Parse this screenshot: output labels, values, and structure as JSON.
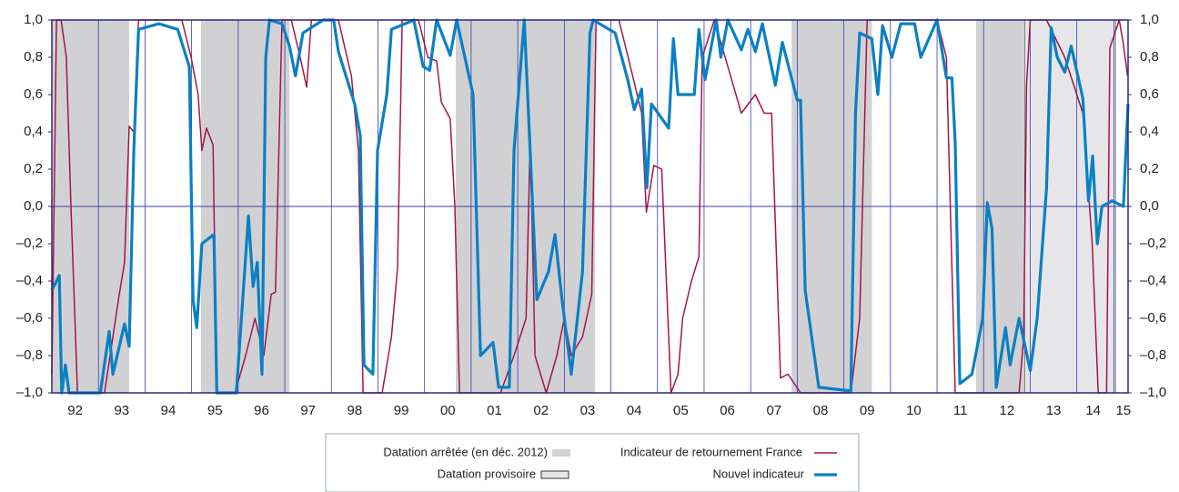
{
  "chart_data": {
    "type": "line",
    "xlim": [
      1992.0,
      2015.1
    ],
    "ylim": [
      -1.0,
      1.0
    ],
    "xticks": [
      {
        "value": 1992.5,
        "label": "92"
      },
      {
        "value": 1993.5,
        "label": "93"
      },
      {
        "value": 1994.5,
        "label": "94"
      },
      {
        "value": 1995.5,
        "label": "95"
      },
      {
        "value": 1996.5,
        "label": "96"
      },
      {
        "value": 1997.5,
        "label": "97"
      },
      {
        "value": 1998.5,
        "label": "98"
      },
      {
        "value": 1999.5,
        "label": "99"
      },
      {
        "value": 2000.5,
        "label": "00"
      },
      {
        "value": 2001.5,
        "label": "01"
      },
      {
        "value": 2002.5,
        "label": "02"
      },
      {
        "value": 2003.5,
        "label": "03"
      },
      {
        "value": 2004.5,
        "label": "04"
      },
      {
        "value": 2005.5,
        "label": "05"
      },
      {
        "value": 2006.5,
        "label": "06"
      },
      {
        "value": 2007.5,
        "label": "07"
      },
      {
        "value": 2008.5,
        "label": "08"
      },
      {
        "value": 2009.5,
        "label": "09"
      },
      {
        "value": 2010.5,
        "label": "10"
      },
      {
        "value": 2011.5,
        "label": "11"
      },
      {
        "value": 2012.5,
        "label": "12"
      },
      {
        "value": 2013.5,
        "label": "13"
      },
      {
        "value": 2014.35,
        "label": "14"
      },
      {
        "value": 2015.0,
        "label": "15"
      }
    ],
    "xgrid": [
      1993,
      1994,
      1995,
      1996,
      1997,
      1998,
      1999,
      2000,
      2001,
      2002,
      2003,
      2004,
      2005,
      2006,
      2007,
      2008,
      2009,
      2010,
      2011,
      2012,
      2013,
      2014,
      2014.8
    ],
    "yticks": [
      {
        "value": -1.0,
        "label": "–1,0"
      },
      {
        "value": -0.8,
        "label": "–0,8"
      },
      {
        "value": -0.6,
        "label": "–0,6"
      },
      {
        "value": -0.4,
        "label": "–0,4"
      },
      {
        "value": -0.2,
        "label": "–0,2"
      },
      {
        "value": 0.0,
        "label": "0,0"
      },
      {
        "value": 0.2,
        "label": "0,2"
      },
      {
        "value": 0.4,
        "label": "0,4"
      },
      {
        "value": 0.6,
        "label": "0,6"
      },
      {
        "value": 0.8,
        "label": "0,8"
      },
      {
        "value": 1.0,
        "label": "1,0"
      }
    ],
    "bands": [
      {
        "name": "Datation arrêtée (en déc. 2012)",
        "color": "#d1d1d3",
        "spans": [
          [
            1992.0,
            1993.66
          ],
          [
            1995.2,
            1997.1
          ],
          [
            2000.67,
            2003.66
          ],
          [
            2007.88,
            2009.6
          ],
          [
            2011.84,
            2012.88
          ]
        ]
      },
      {
        "name": "Datation provisoire",
        "color": "#e6e6e8",
        "spans": [
          [
            2012.88,
            2014.83
          ]
        ]
      }
    ],
    "series": [
      {
        "name": "Indicateur de retournement France",
        "color": "#a3154a",
        "width": 1.5,
        "x": [
          1992.0,
          1992.1,
          1992.2,
          1992.31,
          1992.41,
          1992.55,
          1993.13,
          1993.43,
          1993.56,
          1993.66,
          1993.76,
          1993.86,
          1994.79,
          1994.99,
          1995.14,
          1995.22,
          1995.32,
          1995.46,
          1995.54,
          1995.93,
          1996.16,
          1996.36,
          1996.55,
          1996.71,
          1996.8,
          1996.94,
          1997.14,
          1997.33,
          1997.47,
          1997.57,
          1998.15,
          1998.43,
          1998.58,
          1998.68,
          1999.09,
          1999.29,
          1999.42,
          1999.52,
          1999.87,
          2000.07,
          2000.26,
          2000.36,
          2000.55,
          2000.65,
          2000.75,
          2001.63,
          2001.92,
          2002.18,
          2002.27,
          2002.37,
          2002.61,
          2002.84,
          2003.0,
          2003.15,
          2003.39,
          2003.59,
          2003.68,
          2004.17,
          2004.37,
          2004.66,
          2004.76,
          2004.92,
          2005.09,
          2005.29,
          2005.44,
          2005.54,
          2005.73,
          2005.89,
          2005.96,
          2006.22,
          2006.51,
          2006.8,
          2007.1,
          2007.29,
          2007.45,
          2007.64,
          2007.8,
          2008.07,
          2009.15,
          2009.34,
          2009.5,
          2011.0,
          2011.2,
          2011.39,
          2012.76,
          2012.86,
          2012.92,
          2013.0,
          2013.35,
          2013.74,
          2014.13,
          2014.33,
          2014.46,
          2014.64,
          2014.71,
          2014.91,
          2015.0,
          2015.09
        ],
        "values": [
          -0.9,
          1.0,
          1.0,
          0.8,
          0.0,
          -1.0,
          -1.0,
          -0.5,
          -0.3,
          0.43,
          0.4,
          1.0,
          1.0,
          0.8,
          0.6,
          0.3,
          0.42,
          0.33,
          -1.0,
          -1.0,
          -0.8,
          -0.6,
          -0.8,
          -0.47,
          -0.46,
          1.0,
          1.0,
          0.8,
          0.64,
          1.0,
          1.0,
          0.7,
          0.3,
          -1.0,
          -1.0,
          -0.7,
          -0.33,
          1.0,
          1.0,
          0.8,
          0.78,
          0.56,
          0.47,
          0.0,
          -1.0,
          -1.0,
          -0.8,
          -0.6,
          0.38,
          -0.8,
          -1.0,
          -0.8,
          -0.6,
          -0.8,
          -0.7,
          -0.47,
          1.0,
          1.0,
          0.8,
          0.5,
          -0.03,
          0.22,
          0.2,
          -1.0,
          -0.9,
          -0.6,
          -0.4,
          -0.27,
          0.8,
          1.0,
          0.75,
          0.5,
          0.6,
          0.5,
          0.5,
          -0.92,
          -0.9,
          -1.0,
          -1.0,
          -0.6,
          1.0,
          1.0,
          0.8,
          -1.0,
          -1.0,
          -0.7,
          0.65,
          1.0,
          1.0,
          0.8,
          0.5,
          -0.2,
          -1.0,
          -1.0,
          0.85,
          1.0,
          0.87,
          0.7
        ]
      },
      {
        "name": "Nouvel indicateur",
        "color": "#0a80c4",
        "width": 3.2,
        "x": [
          1992.0,
          1992.16,
          1992.21,
          1992.29,
          1992.37,
          1993.04,
          1993.23,
          1993.31,
          1993.56,
          1993.66,
          1993.76,
          1993.86,
          1994.3,
          1994.7,
          1994.95,
          1995.03,
          1995.11,
          1995.22,
          1995.48,
          1995.54,
          1995.96,
          1996.22,
          1996.32,
          1996.41,
          1996.51,
          1996.59,
          1996.67,
          1996.94,
          1997.1,
          1997.23,
          1997.39,
          1997.82,
          1998.05,
          1998.15,
          1998.5,
          1998.62,
          1998.7,
          1998.89,
          1998.99,
          1999.19,
          1999.29,
          1999.77,
          1999.97,
          2000.11,
          2000.26,
          2000.55,
          2000.69,
          2001.04,
          2001.2,
          2001.47,
          2001.59,
          2001.82,
          2001.92,
          2002.14,
          2002.41,
          2002.66,
          2002.8,
          2002.94,
          2003.15,
          2003.39,
          2003.55,
          2003.62,
          2004.09,
          2004.36,
          2004.5,
          2004.66,
          2004.77,
          2004.87,
          2005.24,
          2005.34,
          2005.44,
          2005.79,
          2005.89,
          2006.02,
          2006.26,
          2006.36,
          2006.51,
          2006.8,
          2006.94,
          2007.1,
          2007.25,
          2007.53,
          2007.68,
          2008.0,
          2008.07,
          2008.17,
          2008.46,
          2009.15,
          2009.25,
          2009.34,
          2009.6,
          2009.73,
          2009.83,
          2010.03,
          2010.22,
          2010.52,
          2010.65,
          2011.0,
          2011.2,
          2011.32,
          2011.39,
          2011.49,
          2011.75,
          2011.98,
          2012.08,
          2012.18,
          2012.27,
          2012.47,
          2012.57,
          2012.76,
          2013.0,
          2013.15,
          2013.35,
          2013.45,
          2013.58,
          2013.74,
          2013.88,
          2014.13,
          2014.25,
          2014.34,
          2014.44,
          2014.54,
          2014.76,
          2015.0,
          2015.1
        ],
        "values": [
          -0.45,
          -0.37,
          -1.0,
          -0.85,
          -1.0,
          -1.0,
          -0.67,
          -0.9,
          -0.63,
          -0.75,
          0.3,
          0.95,
          0.98,
          0.95,
          0.75,
          -0.5,
          -0.65,
          -0.2,
          -0.15,
          -1.0,
          -1.0,
          -0.05,
          -0.43,
          -0.3,
          -0.9,
          0.8,
          1.0,
          0.98,
          0.86,
          0.7,
          0.93,
          1.0,
          1.0,
          0.83,
          0.55,
          0.38,
          -0.85,
          -0.9,
          0.3,
          0.6,
          0.95,
          1.0,
          0.75,
          0.73,
          1.0,
          0.81,
          1.0,
          0.6,
          -0.8,
          -0.73,
          -0.97,
          -0.97,
          0.3,
          1.0,
          -0.5,
          -0.35,
          -0.15,
          -0.48,
          -0.9,
          -0.35,
          0.93,
          1.0,
          0.93,
          0.68,
          0.52,
          0.63,
          0.1,
          0.55,
          0.42,
          0.9,
          0.6,
          0.6,
          0.95,
          0.68,
          1.0,
          0.8,
          1.0,
          0.84,
          0.95,
          0.83,
          0.98,
          0.65,
          0.88,
          0.57,
          0.57,
          -0.45,
          -0.97,
          -0.99,
          0.5,
          0.93,
          0.9,
          0.6,
          0.97,
          0.8,
          0.98,
          0.98,
          0.8,
          1.0,
          0.69,
          0.69,
          0.34,
          -0.95,
          -0.9,
          -0.6,
          0.02,
          -0.12,
          -0.97,
          -0.65,
          -0.85,
          -0.6,
          -0.88,
          -0.6,
          0.1,
          0.96,
          0.8,
          0.72,
          0.86,
          0.58,
          0.03,
          0.27,
          -0.2,
          0.0,
          0.03,
          0.0,
          0.55
        ]
      }
    ]
  }
}
